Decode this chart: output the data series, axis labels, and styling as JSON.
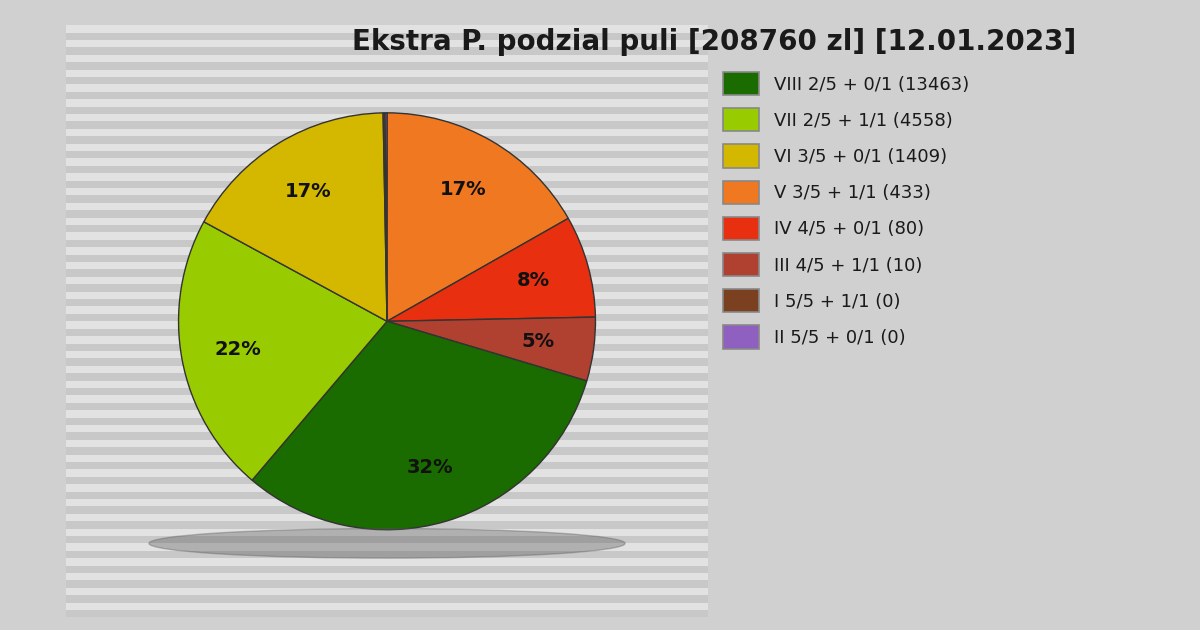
{
  "title": "Ekstra P. podzial puli [208760 zl] [12.01.2023]",
  "slices_ordered": [
    {
      "label": "V 3/5 + 1/1 (433)",
      "pct": 17,
      "color": "#f07820"
    },
    {
      "label": "IV 4/5 + 0/1 (80)",
      "pct": 8,
      "color": "#e83010"
    },
    {
      "label": "III 4/5 + 1/1 (10)",
      "pct": 5,
      "color": "#b04030"
    },
    {
      "label": "VIII 2/5 + 0/1 (13463)",
      "pct": 32,
      "color": "#1a6b00"
    },
    {
      "label": "VII 2/5 + 1/1 (4558)",
      "pct": 22,
      "color": "#99cc00"
    },
    {
      "label": "VI 3/5 + 0/1 (1409)",
      "pct": 17,
      "color": "#d4b800"
    },
    {
      "label": "I 5/5 + 1/1 (0)",
      "pct": 0,
      "color": "#7b4020"
    },
    {
      "label": "II 5/5 + 0/1 (0)",
      "pct": 0,
      "color": "#9060c0"
    }
  ],
  "legend_order": [
    {
      "label": "VIII 2/5 + 0/1 (13463)",
      "color": "#1a6b00"
    },
    {
      "label": "VII 2/5 + 1/1 (4558)",
      "color": "#99cc00"
    },
    {
      "label": "VI 3/5 + 0/1 (1409)",
      "color": "#d4b800"
    },
    {
      "label": "V 3/5 + 1/1 (433)",
      "color": "#f07820"
    },
    {
      "label": "IV 4/5 + 0/1 (80)",
      "color": "#e83010"
    },
    {
      "label": "III 4/5 + 1/1 (10)",
      "color": "#b04030"
    },
    {
      "label": "I 5/5 + 1/1 (0)",
      "color": "#7b4020"
    },
    {
      "label": "II 5/5 + 0/1 (0)",
      "color": "#9060c0"
    }
  ],
  "bg_color": "#d0d0d0",
  "chart_box_color": "#e2e2e2",
  "stripe_dark": "#c8c8c8",
  "stripe_light": "#e2e2e2",
  "title_fontsize": 20,
  "label_fontsize": 14,
  "legend_fontsize": 13,
  "figsize": [
    12.0,
    6.3
  ]
}
